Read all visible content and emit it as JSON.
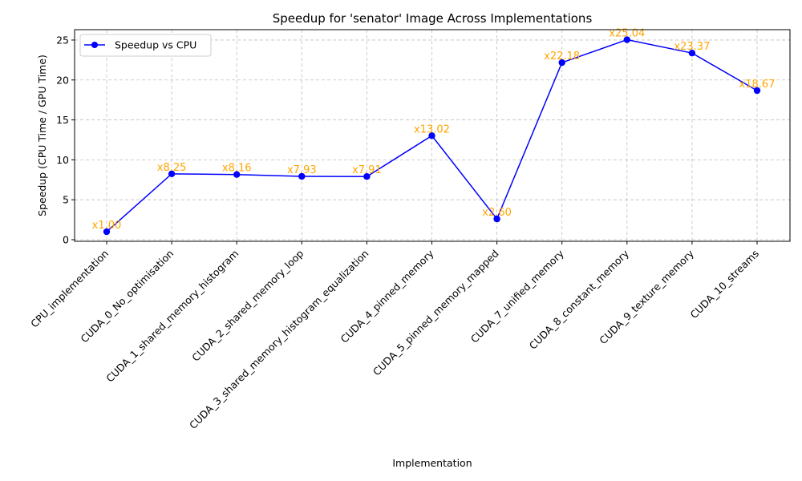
{
  "chart_data": {
    "type": "line",
    "title": "Speedup for 'senator' Image Across Implementations",
    "xlabel": "Implementation",
    "ylabel": "Speedup (CPU Time / GPU Time)",
    "categories": [
      "CPU_implementation",
      "CUDA_0_No_optimisation",
      "CUDA_1_shared_memory_histogram",
      "CUDA_2_shared_memory_loop",
      "CUDA_3_shared_memory_histogram_equalization",
      "CUDA_4_pinned_memory",
      "CUDA_5_pinned_memory_mapped",
      "CUDA_7_unified_memory",
      "CUDA_8_constant_memory",
      "CUDA_9_texture_memory",
      "CUDA_10_streams"
    ],
    "series": [
      {
        "name": "Speedup vs CPU",
        "values": [
          1.0,
          8.25,
          8.16,
          7.93,
          7.91,
          13.02,
          2.6,
          22.18,
          25.04,
          23.37,
          18.67
        ],
        "labels": [
          "x1.00",
          "x8.25",
          "x8.16",
          "x7.93",
          "x7.91",
          "x13.02",
          "x2.60",
          "x22.18",
          "x25.04",
          "x23.37",
          "x18.67"
        ],
        "color": "#0000ff",
        "label_color": "#ffa500"
      }
    ],
    "ylim": [
      -0.2,
      26.3
    ],
    "yticks": [
      0,
      5,
      10,
      15,
      20,
      25
    ],
    "grid": true,
    "legend_position": "upper-left"
  }
}
